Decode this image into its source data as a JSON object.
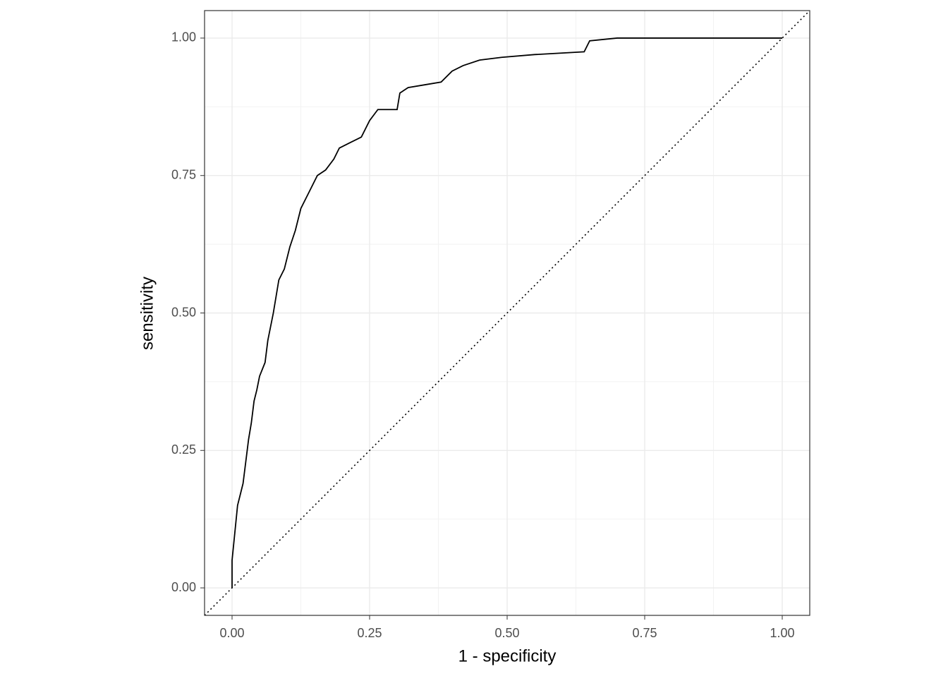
{
  "chart_data": {
    "type": "line",
    "x_label": "1 - specificity",
    "y_label": "sensitivity",
    "x": [
      0,
      0,
      0.005,
      0.01,
      0.015,
      0.02,
      0.025,
      0.03,
      0.035,
      0.04,
      0.045,
      0.05,
      0.06,
      0.065,
      0.075,
      0.08,
      0.085,
      0.095,
      0.105,
      0.115,
      0.125,
      0.14,
      0.155,
      0.17,
      0.185,
      0.195,
      0.215,
      0.235,
      0.25,
      0.265,
      0.3,
      0.305,
      0.32,
      0.35,
      0.38,
      0.4,
      0.42,
      0.45,
      0.49,
      0.55,
      0.64,
      0.65,
      0.7,
      1
    ],
    "values": [
      0,
      0.05,
      0.1,
      0.15,
      0.17,
      0.19,
      0.23,
      0.27,
      0.3,
      0.34,
      0.36,
      0.385,
      0.41,
      0.45,
      0.5,
      0.53,
      0.56,
      0.58,
      0.62,
      0.65,
      0.69,
      0.72,
      0.75,
      0.76,
      0.78,
      0.8,
      0.81,
      0.82,
      0.85,
      0.87,
      0.87,
      0.9,
      0.91,
      0.915,
      0.92,
      0.94,
      0.95,
      0.96,
      0.965,
      0.97,
      0.975,
      0.995,
      1,
      1
    ],
    "color": "#000000",
    "xlim": [
      -0.05,
      1.05
    ],
    "ylim": [
      -0.05,
      1.05
    ],
    "xticks": [
      {
        "value": 0,
        "label": "0.00"
      },
      {
        "value": 0.25,
        "label": "0.25"
      },
      {
        "value": 0.5,
        "label": "0.50"
      },
      {
        "value": 0.75,
        "label": "0.75"
      },
      {
        "value": 1,
        "label": "1.00"
      }
    ],
    "yticks": [
      {
        "value": 0,
        "label": "0.00"
      },
      {
        "value": 0.25,
        "label": "0.25"
      },
      {
        "value": 0.5,
        "label": "0.50"
      },
      {
        "value": 0.75,
        "label": "0.75"
      },
      {
        "value": 1,
        "label": "1.00"
      }
    ],
    "minor_ticks": [
      0.125,
      0.375,
      0.625,
      0.875
    ],
    "grid": true,
    "reference_line": "diagonal"
  }
}
